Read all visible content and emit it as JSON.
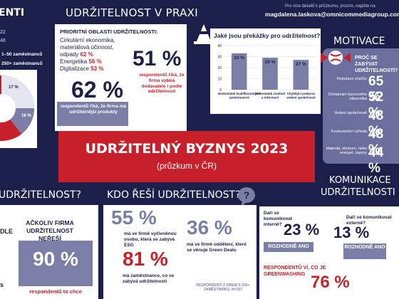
{
  "left_top": {
    "heading_partial": "enti",
    "legend": [
      "22",
      "48",
      "1–50 zaměstnanců",
      "250+ zaměstnanců"
    ],
    "pie_labels": [
      "17 %",
      "18 %"
    ]
  },
  "praxi": {
    "heading": "UDRŽITELNOST V PRAXI",
    "priority_title": "PRIORITNÍ OBLASTI UDRŽITELNOSTI:",
    "priorities": [
      {
        "text": "Cirkulární ekonomika, materiálová účinnost, odpady",
        "value": "62 %"
      },
      {
        "text": "Energetika",
        "value": "56 %"
      },
      {
        "text": "Digitalizace",
        "value": "53 %"
      }
    ],
    "stat1_value": "51 %",
    "stat1_text": "respondentů říká, že firma vybírá dodavatele i podle udržitelnosti",
    "stat2_value": "62 %",
    "stat2_text": "respondentů říká, že firma má udržitelnější produkty"
  },
  "contact": {
    "line1": "Pro více detailů k průzkumu, prosím, napište na",
    "line2": "magdalena.laskova@omnicommediagroup.com"
  },
  "obstacles": {
    "title": "Jaké jsou překážky pro udržitelnost?",
    "icon": "traffic-cone-icon"
  },
  "chart_data": {
    "type": "bar",
    "title": "Jaké jsou překážky pro udržitelnost?",
    "categories": [
      "Nedostatek kvalifikovaných zaměstnanců",
      "Nedostatek znalostí a informací",
      "Chybějící podpora vedení společnosti"
    ],
    "values": [
      33,
      29,
      27
    ],
    "value_labels": [
      "33 %",
      "29 %",
      "27 %"
    ],
    "yticks": [
      "0",
      "10",
      "20",
      "30",
      "40"
    ],
    "ylim": [
      0,
      40
    ],
    "grid": true,
    "bar_color": "#7b7fa8"
  },
  "motivace": {
    "heading": "MOTIVACE",
    "intro": "PROČ SE ZABÝVAT UDRŽITELNOSTÍ?",
    "items": [
      {
        "label": "Reputace značky",
        "value": "65 %"
      },
      {
        "label": "Očekávání koncového zákazníka",
        "value": "52 %"
      },
      {
        "label": "Vedení společnosti",
        "value": "48 %"
      },
      {
        "label": "Konkurenční výhoda",
        "value": "48 %"
      },
      {
        "label": "Materiál, ekonom. nebo energet. úspory",
        "value": "44 %"
      }
    ]
  },
  "banner": {
    "title": "UDRŽITELNÝ BYZNYS 2023",
    "subtitle": "(průzkum v ČR)"
  },
  "left_bottom": {
    "heading": "UDRŽITELNOST?",
    "partial1": "DLE",
    "partial2": "s",
    "lead": "AČKOLIV FIRMA UDRŽITELNOST NEŘEŠÍ",
    "value": "90 %",
    "caption": "respondentů to chce"
  },
  "kdo": {
    "heading": "KDO ŘEŠÍ UDRŽITELNOST?",
    "stat1_value": "55 %",
    "stat1_text": "má ve firmě vyčleněnou osobu, která se zabývá ESG",
    "stat2_value": "36 %",
    "stat2_text": "má ve firmě oddělení, které se věnuje Green Dealu",
    "stat3_value": "81 %",
    "stat3_text": "má zaměstnance, co se zabývá udržitelností",
    "note": "RESPONDENTI Z FIREM S 250+ ZAMĚSTNANCI, N=157",
    "bubble_icon": "question-bubble-icon"
  },
  "komunikace": {
    "heading_line1": "KOMUNIKACE",
    "heading_line2": "UDRŽITELNOSTI",
    "q1": "Daří se komunikovat interně?",
    "v1": "23 %",
    "a1": "ROZHODNĚ ANO",
    "q2": "Daří se komunikovat externě?",
    "v2": "13 %",
    "a2": "ROZHODNĚ ANO",
    "green_text": "RESPONDENTŮ VÍ, CO JE GREENWASHING",
    "green_value": "76 %"
  }
}
